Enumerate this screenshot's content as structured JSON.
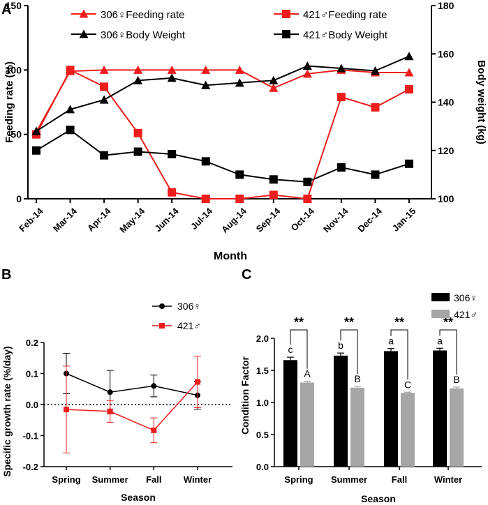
{
  "colors": {
    "female": "#000000",
    "male": "#ee1c1c",
    "male_bar": "#a6a6a6",
    "female_bar": "#000000"
  },
  "chart_data": [
    {
      "panel": "A",
      "type": "line",
      "xlabel": "Month",
      "ylabel": "Feeding rate (%)",
      "y2label": "Body weight (kg)",
      "categories": [
        "Feb-14",
        "Mar-14",
        "Apr-14",
        "May-14",
        "Jun-14",
        "Jul-14",
        "Aug-14",
        "Sep-14",
        "Oct-14",
        "Nov-14",
        "Dec-14",
        "Jan-15"
      ],
      "ylim": [
        0,
        150
      ],
      "yticks": [
        "0",
        "50",
        "100",
        "150"
      ],
      "y2lim": [
        100,
        180
      ],
      "y2ticks": [
        "100",
        "120",
        "140",
        "160",
        "180"
      ],
      "series": [
        {
          "name": "306♀Feeding rate",
          "axis": "left",
          "marker": "triangle",
          "color": "#ee1c1c",
          "values": [
            52,
            99,
            100,
            100,
            100,
            100,
            100,
            86,
            97,
            100,
            98,
            98
          ]
        },
        {
          "name": "421♂Feeding rate",
          "axis": "left",
          "marker": "square",
          "color": "#ee1c1c",
          "values": [
            50,
            100,
            87,
            51,
            5,
            0,
            0,
            3,
            0,
            79,
            71,
            85
          ]
        },
        {
          "name": "306♀Body Weight",
          "axis": "right",
          "marker": "triangle",
          "color": "#000000",
          "values": [
            128,
            137,
            141,
            149,
            150,
            147,
            148,
            149,
            155,
            154,
            153,
            159
          ]
        },
        {
          "name": "421♂Body Weight",
          "axis": "right",
          "marker": "square",
          "color": "#000000",
          "values": [
            120,
            128.5,
            118,
            119.5,
            118.5,
            115.5,
            110,
            108,
            107,
            113,
            110,
            114.5
          ]
        }
      ]
    },
    {
      "panel": "B",
      "type": "line",
      "xlabel": "Season",
      "ylabel": "Specific growth rate (%/day)",
      "categories": [
        "Spring",
        "Summer",
        "Fall",
        "Winter"
      ],
      "ylim": [
        -0.2,
        0.2
      ],
      "yticks": [
        "-0.2",
        "-0.1",
        "0.0",
        "0.1",
        "0.2"
      ],
      "series": [
        {
          "name": "306♀",
          "marker": "circle",
          "color": "#000000",
          "values": [
            0.1,
            0.04,
            0.06,
            0.03
          ],
          "errors": [
            0.065,
            0.07,
            0.035,
            0.045
          ]
        },
        {
          "name": "421♂",
          "marker": "square",
          "color": "#ee1c1c",
          "values": [
            -0.016,
            -0.022,
            -0.083,
            0.073
          ],
          "errors": [
            0.14,
            0.035,
            0.04,
            0.083
          ]
        }
      ]
    },
    {
      "panel": "C",
      "type": "bar",
      "xlabel": "Season",
      "ylabel": "Condition Factor",
      "categories": [
        "Spring",
        "Summer",
        "Fall",
        "Winter"
      ],
      "ylim": [
        0,
        2.0
      ],
      "yticks": [
        "0.0",
        "0.5",
        "1.0",
        "1.5",
        "2.0"
      ],
      "series": [
        {
          "name": "306♀",
          "color": "#000000",
          "values": [
            1.66,
            1.73,
            1.8,
            1.81
          ],
          "errors": [
            0.045,
            0.04,
            0.04,
            0.035
          ],
          "letters": [
            "c",
            "b",
            "a",
            "a"
          ]
        },
        {
          "name": "421♂",
          "color": "#a6a6a6",
          "values": [
            1.31,
            1.23,
            1.15,
            1.22
          ],
          "errors": [
            0.02,
            0.02,
            0.01,
            0.02
          ],
          "letters": [
            "A",
            "B",
            "C",
            "B"
          ]
        }
      ],
      "significance": [
        "**",
        "**",
        "**",
        "**"
      ]
    }
  ],
  "labels": {
    "panel_a": "A",
    "panel_b": "B",
    "panel_c": "C"
  }
}
